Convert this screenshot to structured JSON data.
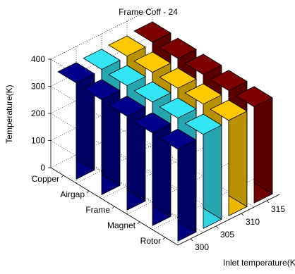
{
  "chart_data": {
    "type": "bar",
    "title": "Frame Coff - 24",
    "zlabel": "Temperature(K)",
    "xlabel": "Inlet temperature(K)",
    "zlim": [
      0,
      400
    ],
    "z_ticks": [
      "0",
      "100",
      "200",
      "300",
      "400"
    ],
    "x_categories": [
      "300",
      "305",
      "310",
      "315"
    ],
    "y_categories": [
      "Copper",
      "Airgap",
      "Frame",
      "Magnet",
      "Rotor"
    ],
    "grid": true,
    "series": [
      {
        "values": [
          355,
          350,
          346,
          342,
          339
        ],
        "color": "#00008b"
      },
      {
        "values": [
          358,
          355,
          352,
          350,
          347
        ],
        "color": "#33e6f5"
      },
      {
        "values": [
          360,
          358,
          356,
          355,
          352
        ],
        "color": "#ffc800"
      },
      {
        "values": [
          365,
          362,
          360,
          358,
          355
        ],
        "color": "#7d0000"
      }
    ]
  }
}
